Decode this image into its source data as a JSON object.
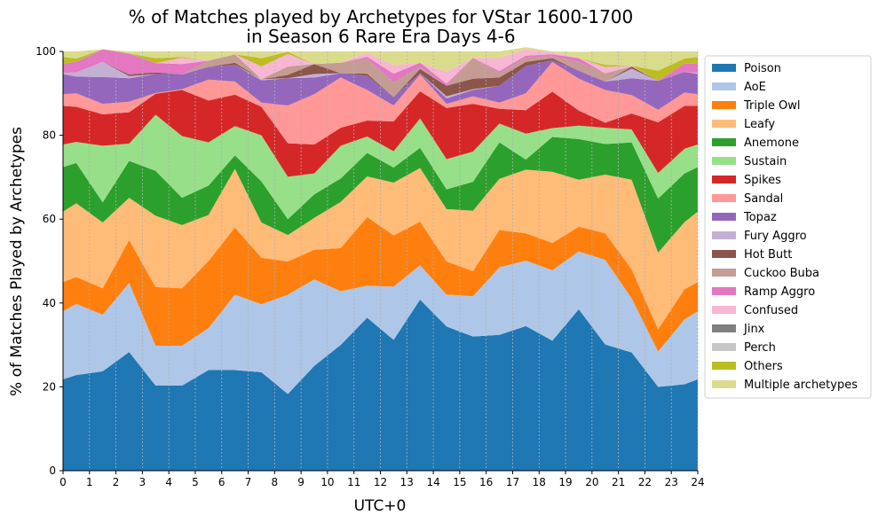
{
  "chart_data": {
    "type": "area",
    "stacked": true,
    "title": "% of Matches played by Archetypes for VStar 1600-1700\nin Season 6 Rare Era Days 4-6",
    "xlabel": "UTC+0",
    "ylabel": "% of Matches Played by Archetypes",
    "xlim": [
      0,
      24
    ],
    "ylim": [
      0,
      100
    ],
    "x_ticks": [
      0,
      1,
      2,
      3,
      4,
      5,
      6,
      7,
      8,
      9,
      10,
      11,
      12,
      13,
      14,
      15,
      16,
      17,
      18,
      19,
      20,
      21,
      22,
      23,
      24
    ],
    "y_ticks": [
      0,
      20,
      40,
      60,
      80,
      100
    ],
    "x_grid": true,
    "y_grid": false,
    "legend_position": "outside-right",
    "x": [
      0,
      0.5,
      1.5,
      2.5,
      3.5,
      4.5,
      5.5,
      6.5,
      7.5,
      8.5,
      9.5,
      10.5,
      11.5,
      12.5,
      13.5,
      14.5,
      15.5,
      16.5,
      17.5,
      18.5,
      19.5,
      20.5,
      21.5,
      22.5,
      23.5,
      24
    ],
    "series": [
      {
        "name": "Poison",
        "color": "#1f77b4",
        "values": [
          21.8,
          22.8,
          23.7,
          28.3,
          20.3,
          20.3,
          24,
          24,
          23.5,
          18.3,
          25,
          30,
          36.5,
          31.2,
          40.8,
          34.4,
          32,
          32.4,
          34.5,
          31,
          38.5,
          30.1,
          28.2,
          20,
          20.6,
          21.8
        ]
      },
      {
        "name": "AoE",
        "color": "#aec7e8",
        "values": [
          16.2,
          17,
          13.5,
          16.5,
          9.5,
          9.5,
          10,
          18,
          16.2,
          23.7,
          20.6,
          12.8,
          7.6,
          12.7,
          8.2,
          7.6,
          9.6,
          16.1,
          15.6,
          16.8,
          13.8,
          20.2,
          12.9,
          8.4,
          15.5,
          16.2
        ]
      },
      {
        "name": "Triple Owl",
        "color": "#ff7f0e",
        "values": [
          7,
          6.4,
          6.3,
          10.2,
          14,
          13.7,
          16,
          16,
          11.1,
          7.9,
          7.1,
          10.3,
          16.4,
          12.2,
          10.4,
          7.9,
          6,
          8.9,
          6.5,
          6.5,
          5.9,
          6.3,
          6.9,
          5.3,
          7.2,
          7
        ]
      },
      {
        "name": "Leafy",
        "color": "#ffbb78",
        "values": [
          16.8,
          17.6,
          15.7,
          10.1,
          17,
          15.1,
          11,
          14,
          8.4,
          6.3,
          7.6,
          11,
          9.7,
          12.6,
          12.8,
          12.5,
          14.4,
          12.2,
          15.2,
          17,
          11.2,
          14,
          21.4,
          18.3,
          16,
          16.8
        ]
      },
      {
        "name": "Anemone",
        "color": "#2ca02c",
        "values": [
          10.6,
          9.6,
          4.8,
          8.8,
          10.7,
          6.5,
          7,
          3.2,
          9.8,
          3.8,
          5.6,
          5.6,
          5.6,
          3.6,
          4.8,
          4.7,
          6.9,
          8.7,
          2.4,
          8.3,
          9.7,
          7.3,
          8.9,
          12.9,
          11.6,
          10.6
        ]
      },
      {
        "name": "Sustain",
        "color": "#98df8a",
        "values": [
          5.4,
          5,
          13.5,
          4.1,
          13.4,
          14.7,
          10.3,
          7,
          11,
          10.1,
          5,
          7.8,
          3.9,
          3.9,
          7,
          7.2,
          7.2,
          4.5,
          6.2,
          2.1,
          3.2,
          3.9,
          3.1,
          6.1,
          5.9,
          5.4
        ]
      },
      {
        "name": "Spikes",
        "color": "#d62728",
        "values": [
          9.2,
          8.4,
          7.5,
          7.5,
          5,
          11,
          10,
          7.5,
          6.8,
          8,
          6.9,
          4.3,
          3.8,
          7.1,
          6.5,
          12.2,
          11.4,
          3.5,
          5.6,
          8.7,
          3.6,
          1.2,
          3.8,
          12.1,
          10.2,
          9.2
        ]
      },
      {
        "name": "Sandal",
        "color": "#ff9896",
        "values": [
          2.8,
          3.2,
          2.5,
          2.5,
          0.2,
          0.2,
          5,
          3.1,
          1,
          9,
          12,
          12,
          7.3,
          3.8,
          4,
          1,
          1.8,
          1.5,
          4,
          7.1,
          7.6,
          7.8,
          4.4,
          3,
          3.2,
          2.8
        ]
      },
      {
        "name": "Topaz",
        "color": "#9467bd",
        "values": [
          4.8,
          4,
          6.4,
          5.6,
          4.5,
          3.5,
          3,
          4,
          5.3,
          6.5,
          4,
          1,
          3.4,
          2,
          0.3,
          1.3,
          1.5,
          4,
          6.5,
          0.4,
          1.9,
          2,
          4,
          6.9,
          4.9,
          4.8
        ]
      },
      {
        "name": "Fury Aggro",
        "color": "#c5b0d5",
        "values": [
          0.3,
          1,
          3.6,
          0.5,
          0,
          0,
          0,
          0,
          0.3,
          0,
          0.8,
          0,
          0,
          0,
          0,
          0.5,
          0.2,
          0,
          0,
          0,
          0,
          0,
          2.3,
          0,
          0,
          0.3
        ]
      },
      {
        "name": "Hot Butt",
        "color": "#8c564b",
        "values": [
          0,
          0,
          0,
          0.4,
          0.4,
          0,
          0,
          0.5,
          0,
          0.8,
          2.4,
          0,
          0.5,
          0,
          1,
          2.5,
          2.5,
          2,
          1,
          0.5,
          0,
          0,
          0.5,
          0,
          0,
          0
        ]
      },
      {
        "name": "Cuckoo Buba",
        "color": "#c49c94",
        "values": [
          0,
          0,
          0,
          0,
          0,
          0,
          1.5,
          2,
          0,
          2,
          0,
          2.5,
          3.5,
          3.5,
          0.5,
          0,
          5,
          1,
          1,
          0.5,
          2,
          2,
          0,
          0,
          0,
          0
        ]
      },
      {
        "name": "Ramp Aggro",
        "color": "#e377c2",
        "values": [
          2.2,
          2.5,
          3,
          5,
          2.2,
          2.5,
          0,
          0,
          0,
          0,
          0,
          0,
          0.5,
          2.1,
          1,
          0.5,
          0,
          0.5,
          0.5,
          0.4,
          1,
          0,
          0,
          0,
          2,
          2.2
        ]
      },
      {
        "name": "Confused",
        "color": "#f7b6d2",
        "values": [
          0,
          0,
          0,
          0,
          0,
          1.5,
          0,
          0,
          3,
          3,
          0,
          0,
          1,
          2,
          0,
          2.8,
          0,
          3.1,
          1.5,
          0.5,
          0,
          1.5,
          0.2,
          0,
          0,
          0
        ]
      },
      {
        "name": "Jinx",
        "color": "#7f7f7f",
        "values": [
          0,
          0,
          0,
          0,
          0,
          0,
          0,
          0,
          0,
          0,
          0,
          0,
          0,
          0,
          0,
          0,
          0,
          0,
          0,
          0,
          0,
          0,
          0,
          0,
          0,
          0
        ]
      },
      {
        "name": "Perch",
        "color": "#c7c7c7",
        "values": [
          0,
          0,
          0,
          0,
          0,
          0,
          0,
          0,
          0,
          0,
          0,
          0,
          0,
          0,
          0,
          0,
          0,
          0,
          0,
          0,
          0,
          0,
          0,
          0,
          0,
          0
        ]
      },
      {
        "name": "Others",
        "color": "#bcbd22",
        "values": [
          1.6,
          0.8,
          0,
          0,
          1.2,
          0.2,
          0,
          0,
          2,
          0.5,
          0,
          0,
          0,
          0,
          0,
          0,
          0,
          0,
          0,
          0,
          0,
          0.5,
          0,
          2.4,
          1.2,
          1.6
        ]
      },
      {
        "name": "Multiple archetypes",
        "color": "#dbdb8d",
        "values": [
          1.3,
          1.7,
          0,
          0.5,
          1.6,
          1.3,
          2.2,
          0.7,
          1.6,
          0.1,
          3,
          2.7,
          0.3,
          3.3,
          2.7,
          4.9,
          1.5,
          1.6,
          0.5,
          0.2,
          1.5,
          3.2,
          3.4,
          4.6,
          1.7,
          1.3
        ]
      }
    ]
  }
}
